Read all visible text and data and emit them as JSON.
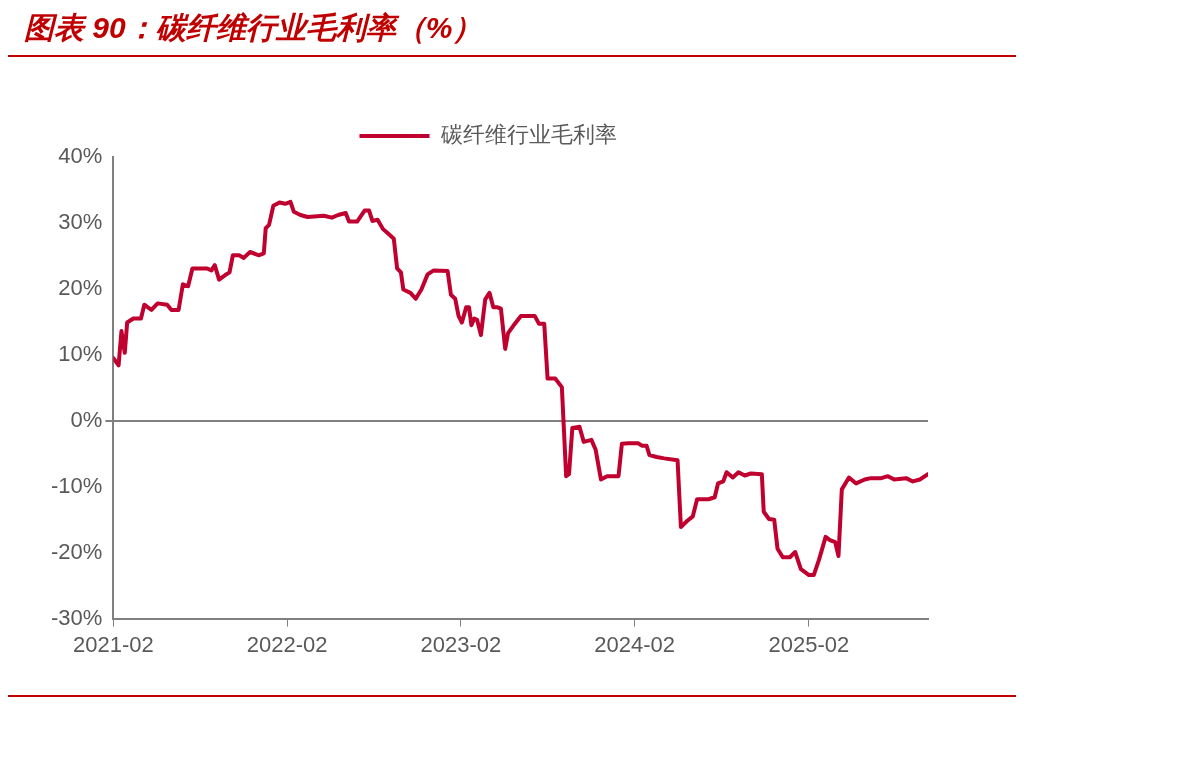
{
  "chart_data": {
    "type": "line",
    "title": "图表 90：碳纤维行业毛利率（%）",
    "x": [
      "2021-02-01",
      "2021-02-12",
      "2021-02-18",
      "2021-02-25",
      "2021-03-02",
      "2021-03-15",
      "2021-03-31",
      "2021-04-07",
      "2021-04-22",
      "2021-05-05",
      "2021-05-25",
      "2021-06-03",
      "2021-06-18",
      "2021-06-27",
      "2021-07-08",
      "2021-07-17",
      "2021-08-17",
      "2021-08-26",
      "2021-09-02",
      "2021-09-11",
      "2021-09-24",
      "2021-10-03",
      "2021-10-10",
      "2021-10-23",
      "2021-11-02",
      "2021-11-15",
      "2021-12-03",
      "2021-12-14",
      "2021-12-18",
      "2021-12-25",
      "2022-01-03",
      "2022-01-16",
      "2022-01-28",
      "2022-02-08",
      "2022-02-15",
      "2022-03-01",
      "2022-03-16",
      "2022-04-19",
      "2022-05-06",
      "2022-05-19",
      "2022-06-04",
      "2022-06-11",
      "2022-06-28",
      "2022-07-14",
      "2022-07-23",
      "2022-07-30",
      "2022-08-10",
      "2022-08-21",
      "2022-09-04",
      "2022-09-13",
      "2022-09-20",
      "2022-09-28",
      "2022-10-03",
      "2022-10-18",
      "2022-10-29",
      "2022-11-10",
      "2022-11-23",
      "2022-12-06",
      "2023-01-04",
      "2023-01-11",
      "2023-01-20",
      "2023-01-27",
      "2023-02-03",
      "2023-02-12",
      "2023-02-18",
      "2023-02-23",
      "2023-03-01",
      "2023-03-07",
      "2023-03-15",
      "2023-03-24",
      "2023-04-02",
      "2023-04-10",
      "2023-04-19",
      "2023-04-26",
      "2023-05-05",
      "2023-05-11",
      "2023-05-22",
      "2023-06-07",
      "2023-07-06",
      "2023-07-15",
      "2023-07-26",
      "2023-08-02",
      "2023-08-18",
      "2023-09-01",
      "2023-09-10",
      "2023-09-16",
      "2023-09-23",
      "2023-10-08",
      "2023-10-17",
      "2023-11-02",
      "2023-11-11",
      "2023-11-22",
      "2023-12-05",
      "2023-12-29",
      "2024-01-05",
      "2024-01-19",
      "2024-02-08",
      "2024-02-17",
      "2024-02-26",
      "2024-03-03",
      "2024-03-18",
      "2024-04-03",
      "2024-05-01",
      "2024-05-08",
      "2024-05-21",
      "2024-06-02",
      "2024-06-11",
      "2024-07-05",
      "2024-07-18",
      "2024-07-25",
      "2024-08-05",
      "2024-08-12",
      "2024-08-25",
      "2024-09-06",
      "2024-09-19",
      "2024-10-02",
      "2024-10-25",
      "2024-10-29",
      "2024-11-09",
      "2024-11-20",
      "2024-11-27",
      "2024-12-08",
      "2024-12-23",
      "2025-01-03",
      "2025-01-15",
      "2025-02-01",
      "2025-02-11",
      "2025-02-22",
      "2025-03-08",
      "2025-03-17",
      "2025-03-28",
      "2025-04-04",
      "2025-04-11",
      "2025-04-26",
      "2025-05-11",
      "2025-05-29",
      "2025-06-11",
      "2025-07-03",
      "2025-07-17",
      "2025-07-30",
      "2025-08-24",
      "2025-09-07",
      "2025-09-22",
      "2025-10-09"
    ],
    "series": [
      {
        "name": "碳纤维行业毛利率",
        "color": "#c0002e",
        "values": [
          9.5,
          8.4,
          13.6,
          10.3,
          14.9,
          15.5,
          15.5,
          17.6,
          16.8,
          17.8,
          17.6,
          16.8,
          16.8,
          20.7,
          20.4,
          23.1,
          23.1,
          22.8,
          23.6,
          21.4,
          22.1,
          22.5,
          25.1,
          25.1,
          24.7,
          25.6,
          25.1,
          25.4,
          29.2,
          29.7,
          32.6,
          33.1,
          32.9,
          33.2,
          31.7,
          31.2,
          30.9,
          31.1,
          30.8,
          31.2,
          31.5,
          30.2,
          30.2,
          31.9,
          31.9,
          30.3,
          30.5,
          29.1,
          28.2,
          27.6,
          23.1,
          22.5,
          19.9,
          19.4,
          18.5,
          19.9,
          22.2,
          22.8,
          22.7,
          19.1,
          18.5,
          15.9,
          14.9,
          17.2,
          17.2,
          14.5,
          15.5,
          15.3,
          13.0,
          18.4,
          19.4,
          17.2,
          17.2,
          17.0,
          10.9,
          13.3,
          14.4,
          15.9,
          15.9,
          14.7,
          14.7,
          6.4,
          6.4,
          5.1,
          -8.4,
          -8.1,
          -1.1,
          -0.9,
          -3.2,
          -2.9,
          -4.4,
          -8.9,
          -8.4,
          -8.4,
          -3.5,
          -3.4,
          -3.4,
          -3.8,
          -3.8,
          -5.2,
          -5.5,
          -5.7,
          -6.0,
          -16.1,
          -15.2,
          -14.5,
          -11.9,
          -11.9,
          -11.6,
          -9.5,
          -9.2,
          -7.8,
          -8.6,
          -7.8,
          -8.3,
          -8.0,
          -8.1,
          -13.8,
          -14.9,
          -15.0,
          -19.4,
          -20.7,
          -20.7,
          -19.9,
          -22.5,
          -23.4,
          -23.4,
          -21.1,
          -17.6,
          -18.1,
          -18.4,
          -20.5,
          -10.4,
          -8.6,
          -9.5,
          -8.9,
          -8.7,
          -8.7,
          -8.4,
          -8.9,
          -8.7,
          -9.2,
          -8.9,
          -8.1
        ]
      }
    ],
    "xlim": [
      "2021-02",
      "2025-10-09"
    ],
    "xticks": [
      "2021-02",
      "2022-02",
      "2023-02",
      "2024-02",
      "2025-02"
    ],
    "ylim": [
      -30,
      40
    ],
    "yticks": [
      {
        "value": -30,
        "label": "-30%"
      },
      {
        "value": -20,
        "label": "-20%"
      },
      {
        "value": -10,
        "label": "-10%"
      },
      {
        "value": 0,
        "label": "0%"
      },
      {
        "value": 10,
        "label": "10%"
      },
      {
        "value": 20,
        "label": "20%"
      },
      {
        "value": 30,
        "label": "30%"
      },
      {
        "value": 40,
        "label": "40%"
      }
    ],
    "legend": "top",
    "marker": "none",
    "line_style": "solid"
  }
}
